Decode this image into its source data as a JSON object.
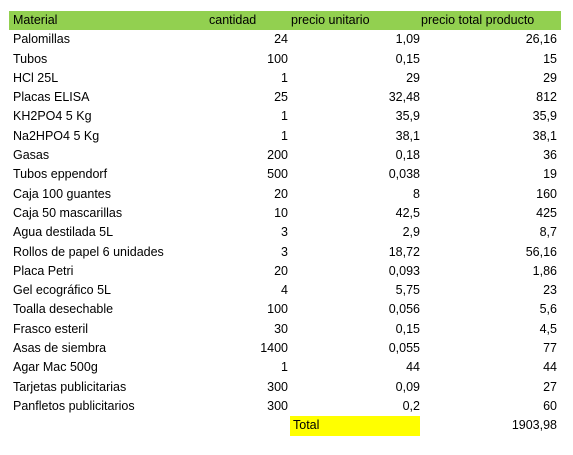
{
  "headers": {
    "material": "Material",
    "cantidad": "cantidad",
    "precio_unitario": "precio unitario",
    "precio_total": "precio total producto"
  },
  "rows": [
    {
      "material": "Palomillas",
      "cantidad": "24",
      "precio_unitario": "1,09",
      "precio_total": "26,16"
    },
    {
      "material": "Tubos",
      "cantidad": "100",
      "precio_unitario": "0,15",
      "precio_total": "15"
    },
    {
      "material": "HCl 25L",
      "cantidad": "1",
      "precio_unitario": "29",
      "precio_total": "29"
    },
    {
      "material": "Placas ELISA",
      "cantidad": "25",
      "precio_unitario": "32,48",
      "precio_total": "812"
    },
    {
      "material": "KH2PO4 5 Kg",
      "cantidad": "1",
      "precio_unitario": "35,9",
      "precio_total": "35,9"
    },
    {
      "material": "Na2HPO4 5 Kg",
      "cantidad": "1",
      "precio_unitario": "38,1",
      "precio_total": "38,1"
    },
    {
      "material": "Gasas",
      "cantidad": "200",
      "precio_unitario": "0,18",
      "precio_total": "36"
    },
    {
      "material": "Tubos eppendorf",
      "cantidad": "500",
      "precio_unitario": "0,038",
      "precio_total": "19"
    },
    {
      "material": "Caja 100 guantes",
      "cantidad": "20",
      "precio_unitario": "8",
      "precio_total": "160"
    },
    {
      "material": "Caja 50 mascarillas",
      "cantidad": "10",
      "precio_unitario": "42,5",
      "precio_total": "425"
    },
    {
      "material": "Agua destilada 5L",
      "cantidad": "3",
      "precio_unitario": "2,9",
      "precio_total": "8,7"
    },
    {
      "material": "Rollos de papel 6 unidades",
      "cantidad": "3",
      "precio_unitario": "18,72",
      "precio_total": "56,16"
    },
    {
      "material": "Placa Petri",
      "cantidad": "20",
      "precio_unitario": "0,093",
      "precio_total": "1,86"
    },
    {
      "material": "Gel ecográfico 5L",
      "cantidad": "4",
      "precio_unitario": "5,75",
      "precio_total": "23"
    },
    {
      "material": "Toalla desechable",
      "cantidad": "100",
      "precio_unitario": "0,056",
      "precio_total": "5,6"
    },
    {
      "material": "Frasco esteril",
      "cantidad": "30",
      "precio_unitario": "0,15",
      "precio_total": "4,5"
    },
    {
      "material": "Asas de siembra",
      "cantidad": "1400",
      "precio_unitario": "0,055",
      "precio_total": "77"
    },
    {
      "material": "Agar Mac 500g",
      "cantidad": "1",
      "precio_unitario": "44",
      "precio_total": "44"
    },
    {
      "material": "Tarjetas publicitarias",
      "cantidad": "300",
      "precio_unitario": "0,09",
      "precio_total": "27"
    },
    {
      "material": "Panfletos publicitarios",
      "cantidad": "300",
      "precio_unitario": "0,2",
      "precio_total": "60"
    }
  ],
  "total": {
    "label": "Total",
    "value": "1903,98"
  },
  "colors": {
    "header_bg": "#92d050",
    "total_bg": "#ffff00"
  }
}
